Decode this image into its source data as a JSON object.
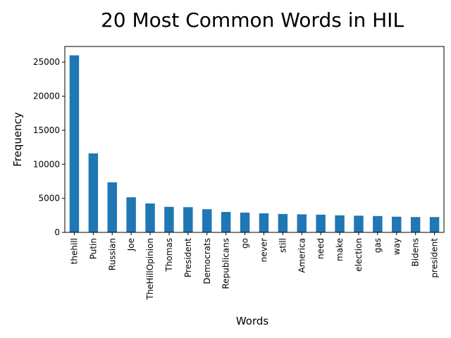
{
  "chart_data": {
    "type": "bar",
    "title": "20 Most Common Words in HIL",
    "xlabel": "Words",
    "ylabel": "Frequency",
    "ylim": [
      0,
      27300
    ],
    "yticks": [
      0,
      5000,
      10000,
      15000,
      20000,
      25000
    ],
    "grid": false,
    "legend": "none",
    "bar_color": "#1f77b4",
    "categories": [
      "thehill",
      "Putin",
      "Russian",
      "Joe",
      "TheHillOpinion",
      "Thomas",
      "President",
      "Democrats",
      "Republicans",
      "go",
      "never",
      "still",
      "America",
      "need",
      "make",
      "election",
      "gas",
      "way",
      "Bidens",
      "president"
    ],
    "values": [
      26000,
      11600,
      7350,
      5150,
      4250,
      3750,
      3700,
      3400,
      3000,
      2900,
      2800,
      2700,
      2650,
      2600,
      2500,
      2450,
      2400,
      2300,
      2250,
      2250
    ]
  }
}
